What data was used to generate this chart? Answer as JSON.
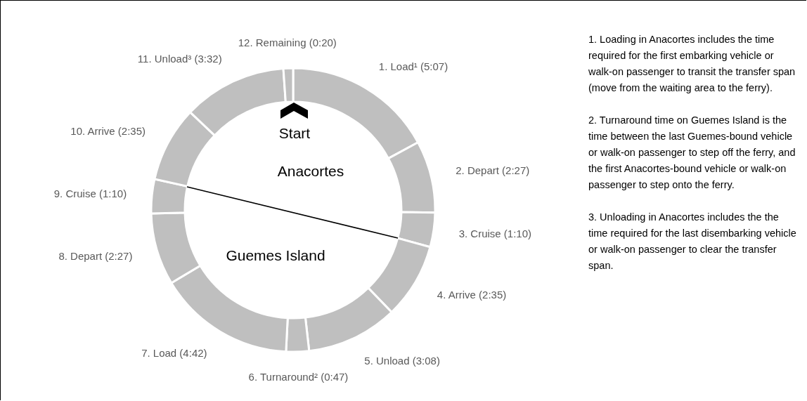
{
  "chart_data": {
    "type": "donut",
    "categories": [
      "1. Load¹ (5:07)",
      "2. Depart (2:27)",
      "3. Cruise (1:10)",
      "4. Arrive (2:35)",
      "5. Unload (3:08)",
      "6. Turnaround² (0:47)",
      "7. Load (4:42)",
      "8. Depart (2:27)",
      "9. Cruise (1:10)",
      "10. Arrive (2:35)",
      "11. Unload³ (3:32)",
      "12. Remaining (0:20)"
    ],
    "values": [
      17.1,
      8.2,
      3.9,
      8.6,
      10.4,
      2.6,
      15.6,
      8.2,
      3.9,
      8.6,
      11.8,
      1.1
    ],
    "colors": [
      "#bfbfbf",
      "#bfbfbf",
      "#bfbfbf",
      "#bfbfbf",
      "#bfbfbf",
      "#bfbfbf",
      "#bfbfbf",
      "#bfbfbf",
      "#bfbfbf",
      "#bfbfbf",
      "#bfbfbf",
      "#bfbfbf"
    ],
    "annotations": [
      "Start",
      "Anacortes",
      "Guemes Island",
      "1. Loading in Anacortes includes the time required for the first embarking vehicle or walk-on passenger to transit the transfer span (move from the waiting area to the ferry).",
      "2. Turnaround time on Guemes Island is the time between the last Guemes-bound vehicle or walk-on passenger to step off the ferry, and the first Anacortes-bound vehicle or walk-on passenger to step onto the ferry.",
      "3. Unloading in Anacortes includes the the time required for the last disembarking vehicle or walk-on passenger to clear the transfer span."
    ]
  }
}
